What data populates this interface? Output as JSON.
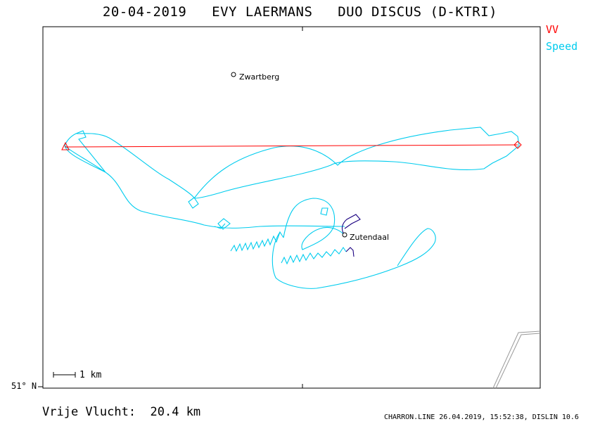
{
  "title": "20-04-2019   EVY LAERMANS   DUO DISCUS (D-KTRI)",
  "legend": {
    "vv": "VV",
    "speed": "Speed"
  },
  "colors": {
    "vv": "#ff0000",
    "speed": "#00ccee",
    "trace_end": "#1a0080",
    "frame": "#000000",
    "border": "#888888"
  },
  "latitude_label": "51° N",
  "scale_label": "1 km",
  "places": [
    {
      "name": "Zwartberg"
    },
    {
      "name": "Zutendaal"
    }
  ],
  "distance_text": "Vrije Vlucht:  20.4 km",
  "footer": "CHARRON.LINE 26.04.2019, 15:52:38, DISLIN 10.6"
}
